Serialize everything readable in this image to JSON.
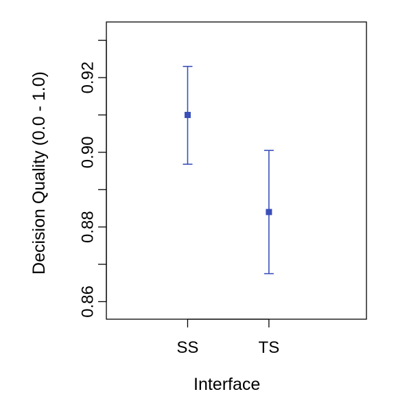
{
  "chart_data": {
    "type": "scatter",
    "subtype": "point-with-error-bars",
    "title": "",
    "xlabel": "Interface",
    "ylabel": "Decision Quality (0.0 - 1.0)",
    "categories": [
      "SS",
      "TS"
    ],
    "series": [
      {
        "color": "#3a4fb8",
        "points": [
          {
            "category": "SS",
            "value": 0.91,
            "lower": 0.8968,
            "upper": 0.923
          },
          {
            "category": "TS",
            "value": 0.884,
            "lower": 0.8675,
            "upper": 0.9005
          }
        ]
      }
    ],
    "ylim": [
      0.8553,
      0.9349
    ],
    "yticks": [
      0.86,
      0.87,
      0.88,
      0.89,
      0.9,
      0.91,
      0.92,
      0.93
    ],
    "ytick_labels": [
      "0.86",
      "",
      "0.88",
      "",
      "0.90",
      "",
      "0.92",
      ""
    ],
    "xlim": [
      0.5,
      3.7
    ],
    "x_positions": [
      1.5,
      2.5
    ],
    "grid": false,
    "legend": "none",
    "plot_box": true
  }
}
